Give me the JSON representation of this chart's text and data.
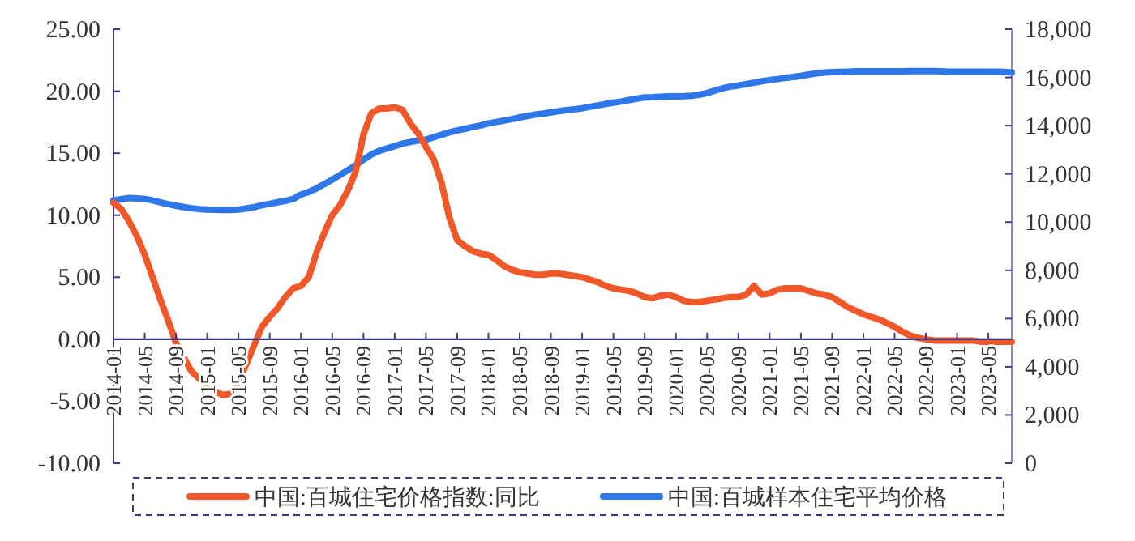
{
  "chart_data": {
    "type": "line",
    "categories": [
      "2014-01",
      null,
      null,
      null,
      "2014-05",
      null,
      null,
      null,
      "2014-09",
      null,
      null,
      null,
      "2015-01",
      null,
      null,
      null,
      "2015-05",
      null,
      null,
      null,
      "2015-09",
      null,
      null,
      null,
      "2016-01",
      null,
      null,
      null,
      "2016-05",
      null,
      null,
      null,
      "2016-09",
      null,
      null,
      null,
      "2017-01",
      null,
      null,
      null,
      "2017-05",
      null,
      null,
      null,
      "2017-09",
      null,
      null,
      null,
      "2018-01",
      null,
      null,
      null,
      "2018-05",
      null,
      null,
      null,
      "2018-09",
      null,
      null,
      null,
      "2019-01",
      null,
      null,
      null,
      "2019-05",
      null,
      null,
      null,
      "2019-09",
      null,
      null,
      null,
      "2020-01",
      null,
      null,
      null,
      "2020-05",
      null,
      null,
      null,
      "2020-09",
      null,
      null,
      null,
      "2021-01",
      null,
      null,
      null,
      "2021-05",
      null,
      null,
      null,
      "2021-09",
      null,
      null,
      null,
      "2022-01",
      null,
      null,
      null,
      "2022-05",
      null,
      null,
      null,
      "2022-09",
      null,
      null,
      null,
      "2023-01",
      null,
      null,
      null,
      "2023-05",
      null,
      null,
      null
    ],
    "series": [
      {
        "name": "中国:百城住宅价格指数:同比",
        "color": "#f0582a",
        "values": [
          11.0,
          10.5,
          9.5,
          8.3,
          6.8,
          5.0,
          3.2,
          1.5,
          -0.3,
          -1.5,
          -2.6,
          -3.2,
          -3.6,
          -4.2,
          -4.5,
          -4.4,
          -3.5,
          -2.0,
          -0.5,
          1.0,
          1.8,
          2.5,
          3.4,
          4.1,
          4.3,
          5.0,
          7.0,
          8.6,
          10.0,
          10.8,
          12.0,
          13.5,
          16.5,
          18.2,
          18.6,
          18.6,
          18.7,
          18.5,
          17.4,
          16.6,
          15.5,
          14.5,
          12.6,
          9.8,
          8.0,
          7.5,
          7.1,
          6.9,
          6.8,
          6.4,
          5.9,
          5.6,
          5.4,
          5.3,
          5.2,
          5.2,
          5.3,
          5.3,
          5.2,
          5.1,
          5.0,
          4.8,
          4.6,
          4.3,
          4.1,
          4.0,
          3.9,
          3.7,
          3.4,
          3.3,
          3.5,
          3.6,
          3.4,
          3.1,
          3.0,
          3.0,
          3.1,
          3.2,
          3.3,
          3.4,
          3.4,
          3.6,
          4.3,
          3.6,
          3.7,
          4.0,
          4.1,
          4.1,
          4.1,
          3.9,
          3.7,
          3.6,
          3.4,
          3.0,
          2.6,
          2.3,
          2.0,
          1.8,
          1.6,
          1.3,
          1.0,
          0.6,
          0.3,
          0.1,
          0.0,
          -0.1,
          -0.1,
          -0.1,
          -0.1,
          -0.1,
          -0.1,
          -0.2,
          -0.2,
          -0.2,
          -0.2,
          -0.2
        ]
      },
      {
        "name": "中国:百城样本住宅平均价格",
        "color": "#2f76e8",
        "axis": "y2",
        "values": [
          10900,
          10950,
          11000,
          10980,
          10960,
          10900,
          10820,
          10740,
          10680,
          10620,
          10570,
          10540,
          10520,
          10510,
          10500,
          10500,
          10520,
          10560,
          10620,
          10700,
          10760,
          10820,
          10880,
          10960,
          11140,
          11250,
          11400,
          11580,
          11760,
          11950,
          12150,
          12350,
          12590,
          12800,
          12950,
          13050,
          13150,
          13250,
          13320,
          13380,
          13420,
          13520,
          13620,
          13720,
          13800,
          13870,
          13940,
          14010,
          14090,
          14150,
          14210,
          14270,
          14340,
          14400,
          14460,
          14500,
          14550,
          14600,
          14640,
          14680,
          14720,
          14780,
          14840,
          14900,
          14950,
          15000,
          15060,
          15120,
          15170,
          15180,
          15200,
          15210,
          15210,
          15220,
          15240,
          15280,
          15350,
          15450,
          15550,
          15620,
          15660,
          15720,
          15780,
          15840,
          15890,
          15930,
          15980,
          16020,
          16060,
          16120,
          16170,
          16200,
          16220,
          16230,
          16240,
          16250,
          16250,
          16250,
          16250,
          16250,
          16250,
          16250,
          16260,
          16260,
          16260,
          16260,
          16250,
          16240,
          16240,
          16240,
          16240,
          16240,
          16240,
          16240,
          16230,
          16200
        ]
      }
    ],
    "ylim": [
      -10,
      25
    ],
    "yticks": [
      {
        "value": -10,
        "label": "-10.00"
      },
      {
        "value": -5,
        "label": "-5.00"
      },
      {
        "value": 0,
        "label": "0.00"
      },
      {
        "value": 5,
        "label": "5.00"
      },
      {
        "value": 10,
        "label": "10.00"
      },
      {
        "value": 15,
        "label": "15.00"
      },
      {
        "value": 20,
        "label": "20.00"
      },
      {
        "value": 25,
        "label": "25.00"
      }
    ],
    "y2lim": [
      0,
      18000
    ],
    "y2ticks": [
      0,
      {
        "value": 2000,
        "label": "2,000"
      },
      {
        "value": 4000,
        "label": "4,000"
      },
      {
        "value": 6000,
        "label": "6,000"
      },
      {
        "value": 8000,
        "label": "8,000"
      },
      {
        "value": 10000,
        "label": "10,000"
      },
      {
        "value": 12000,
        "label": "12,000"
      },
      {
        "value": 14000,
        "label": "14,000"
      },
      {
        "value": 16000,
        "label": "16,000"
      },
      {
        "value": 18000,
        "label": "18,000"
      }
    ],
    "legend": "bottom"
  }
}
